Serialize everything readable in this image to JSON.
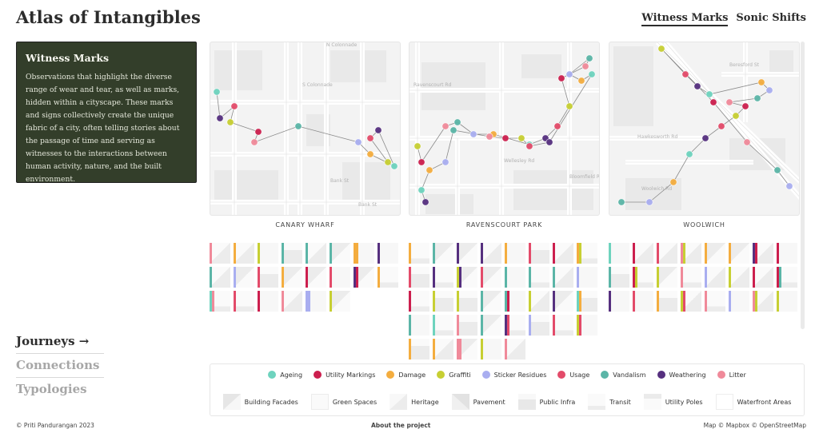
{
  "app": {
    "title": "Atlas of Intangibles"
  },
  "top_nav": [
    {
      "label": "Witness Marks",
      "active": true
    },
    {
      "label": "Sonic Shifts",
      "active": false
    }
  ],
  "info": {
    "title": "Witness Marks",
    "body": "Observations that highlight the diverse range of wear and tear, as well as marks, hidden within a cityscape. These marks and signs collectively create the unique fabric of a city, often telling stories about the passage of time and serving as witnesses to the interactions between human activity, nature, and the built environment."
  },
  "left_nav": [
    {
      "label": "Journeys →",
      "active": true
    },
    {
      "label": "Connections",
      "active": false
    },
    {
      "label": "Typologies",
      "active": false
    }
  ],
  "maps": [
    {
      "label": "CANARY WHARF",
      "street_labels": [
        "N Colonnade",
        "S Colonnade",
        "Bank St",
        "Bank St"
      ]
    },
    {
      "label": "RAVENSCOURT PARK",
      "street_labels": [
        "Ravenscourt Rd",
        "Wellesley Rd",
        "Bloomfield Rd"
      ]
    },
    {
      "label": "WOOLWICH",
      "street_labels": [
        "Beresford St",
        "Hawkesworth Rd",
        "Woolwich Rd"
      ]
    }
  ],
  "legend": {
    "categories": [
      {
        "label": "Ageing",
        "color": "#6ed3be"
      },
      {
        "label": "Utility Markings",
        "color": "#cc1f4e"
      },
      {
        "label": "Damage",
        "color": "#f4ad3f"
      },
      {
        "label": "Graffiti",
        "color": "#c7cf33"
      },
      {
        "label": "Sticker Residues",
        "color": "#a9aef0"
      },
      {
        "label": "Usage",
        "color": "#e34b6a"
      },
      {
        "label": "Vandalism",
        "color": "#5bb5a7"
      },
      {
        "label": "Weathering",
        "color": "#56307f"
      },
      {
        "label": "Litter",
        "color": "#f08a9a"
      }
    ],
    "surfaces": [
      {
        "label": "Building Facades",
        "pattern": "diag-left"
      },
      {
        "label": "Green Spaces",
        "pattern": "blank"
      },
      {
        "label": "Heritage",
        "pattern": "diag-right-light"
      },
      {
        "label": "Pavement",
        "pattern": "diag-left-full"
      },
      {
        "label": "Public Infra",
        "pattern": "bottom-block"
      },
      {
        "label": "Transit",
        "pattern": "bottom-strip"
      },
      {
        "label": "Utility Poles",
        "pattern": "top-strip"
      },
      {
        "label": "Waterfront Areas",
        "pattern": "blank-border"
      }
    ]
  },
  "footer": {
    "copyright": "© Priti Pandurangan 2023",
    "about": "About the project",
    "attribution": "Map © Mapbox © OpenStreetMap"
  }
}
